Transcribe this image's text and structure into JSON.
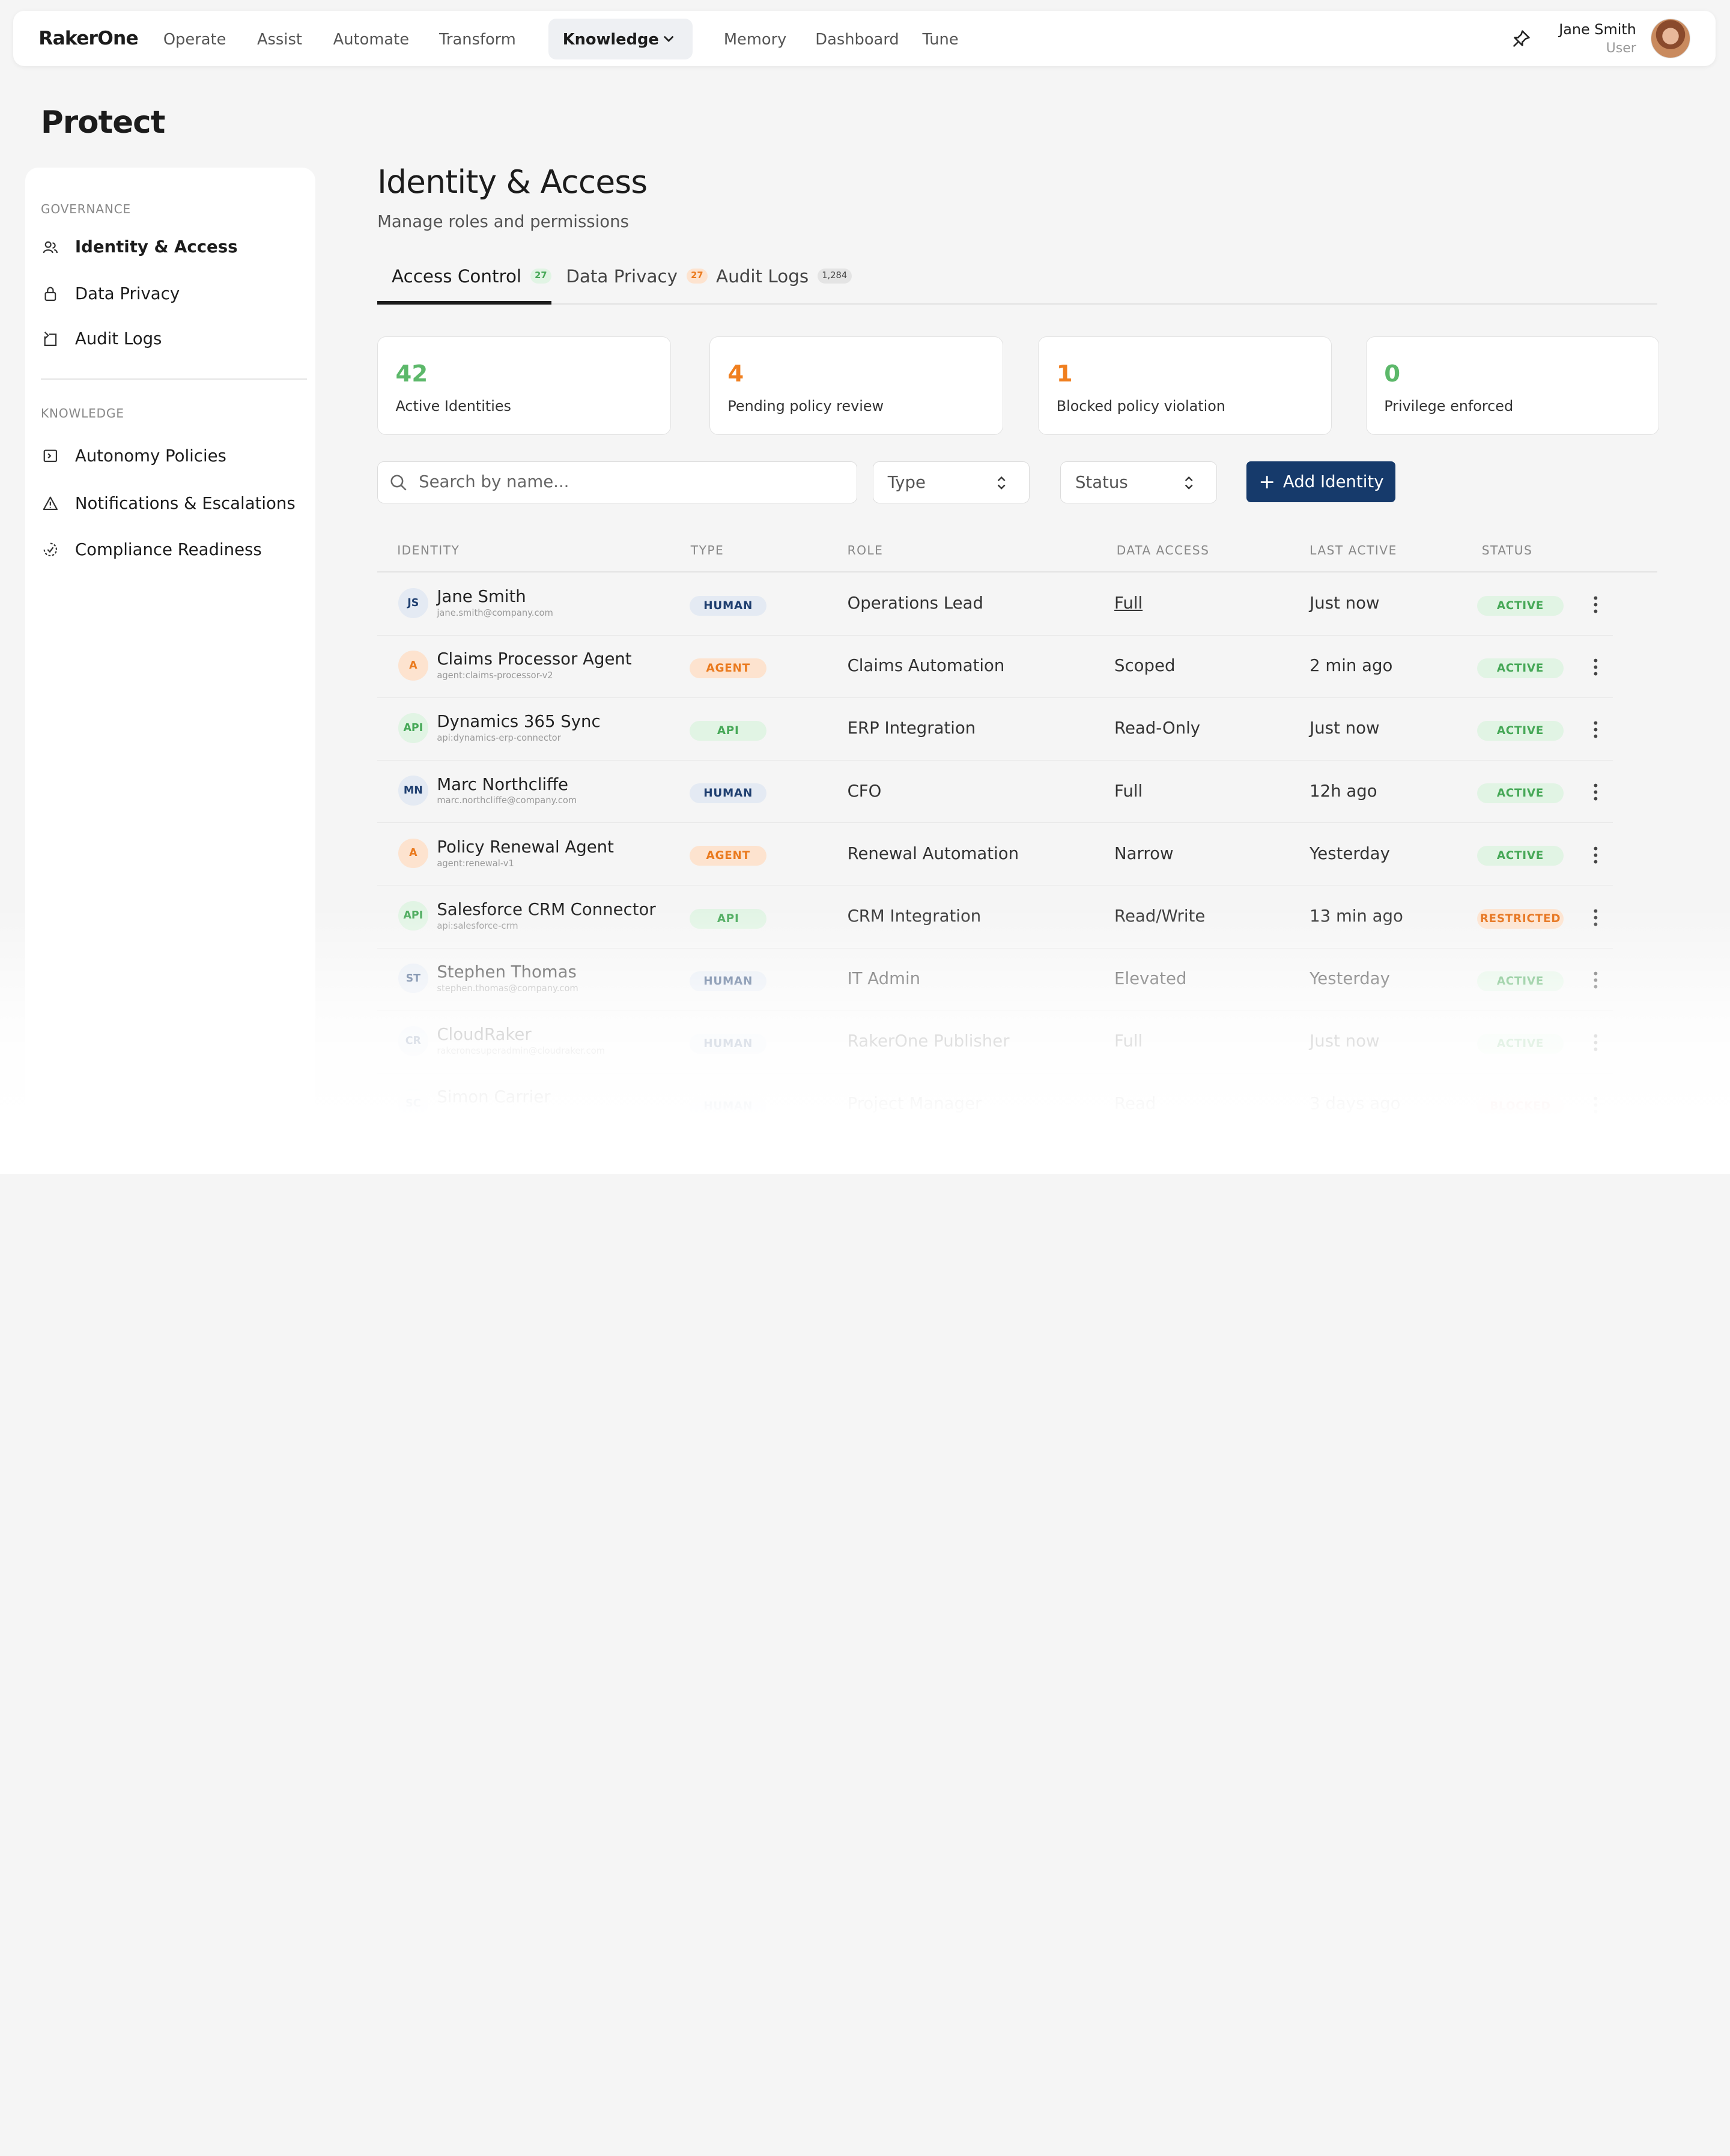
{
  "app": {
    "brand": "RakerOne"
  },
  "nav": {
    "items": [
      "Operate",
      "Assist",
      "Automate",
      "Transform"
    ],
    "active": "Knowledge",
    "items_right": [
      "Memory",
      "Dashboard",
      "Tune"
    ]
  },
  "user": {
    "name": "Jane Smith",
    "role": "User"
  },
  "page": {
    "title": "Protect"
  },
  "sidebar": {
    "governance_label": "GOVERNANCE",
    "governance": [
      {
        "label": "Identity & Access",
        "icon": "users-icon",
        "active": true
      },
      {
        "label": "Data Privacy",
        "icon": "lock-icon"
      },
      {
        "label": "Audit Logs",
        "icon": "log-icon"
      }
    ],
    "knowledge_label": "KNOWLEDGE",
    "knowledge": [
      {
        "label": "Autonomy Policies",
        "icon": "policy-icon"
      },
      {
        "label": "Notifications & Escalations",
        "icon": "alert-icon"
      },
      {
        "label": "Compliance Readiness",
        "icon": "compliance-icon"
      }
    ]
  },
  "main": {
    "title": "Identity & Access",
    "subtitle": "Manage roles and permissions",
    "tabs": [
      {
        "label": "Access Control",
        "badge": "27",
        "active": true
      },
      {
        "label": "Data Privacy",
        "badge": "27"
      },
      {
        "label": "Audit Logs",
        "badge": "1,284"
      }
    ]
  },
  "stats": [
    {
      "value": "42",
      "label": "Active Identities",
      "color": "#5cb86a"
    },
    {
      "value": "4",
      "label": "Pending policy review",
      "color": "#f07f1f"
    },
    {
      "value": "1",
      "label": "Blocked policy violation",
      "color": "#f07f1f"
    },
    {
      "value": "0",
      "label": "Privilege enforced",
      "color": "#5cb86a"
    }
  ],
  "toolbar": {
    "search_placeholder": "Search by name...",
    "type_label": "Type",
    "status_label": "Status",
    "add_label": "Add Identity"
  },
  "table": {
    "headers": [
      "IDENTITY",
      "TYPE",
      "ROLE",
      "DATA ACCESS",
      "LAST ACTIVE",
      "STATUS"
    ],
    "rows": [
      {
        "initials": "JS",
        "name": "Jane Smith",
        "sub": "jane.smith@company.com",
        "type": "HUMAN",
        "role": "Operations Lead",
        "access": "Full",
        "last": "Just now",
        "status": "ACTIVE"
      },
      {
        "initials": "A",
        "name": "Claims Processor Agent",
        "sub": "agent:claims-processor-v2",
        "type": "AGENT",
        "role": "Claims Automation",
        "access": "Scoped",
        "last": "2 min ago",
        "status": "ACTIVE"
      },
      {
        "initials": "API",
        "name": "Dynamics 365 Sync",
        "sub": "api:dynamics-erp-connector",
        "type": "API",
        "role": "ERP Integration",
        "access": "Read-Only",
        "last": "Just now",
        "status": "ACTIVE"
      },
      {
        "initials": "MN",
        "name": "Marc Northcliffe",
        "sub": "marc.northcliffe@company.com",
        "type": "HUMAN",
        "role": "CFO",
        "access": "Full",
        "last": "12h ago",
        "status": "ACTIVE"
      },
      {
        "initials": "A",
        "name": "Policy Renewal Agent",
        "sub": "agent:renewal-v1",
        "type": "AGENT",
        "role": "Renewal Automation",
        "access": "Narrow",
        "last": "Yesterday",
        "status": "ACTIVE"
      },
      {
        "initials": "API",
        "name": "Salesforce CRM Connector",
        "sub": "api:salesforce-crm",
        "type": "API",
        "role": "CRM Integration",
        "access": "Read/Write",
        "last": "13 min ago",
        "status": "RESTRICTED"
      },
      {
        "initials": "ST",
        "name": "Stephen Thomas",
        "sub": "stephen.thomas@company.com",
        "type": "HUMAN",
        "role": "IT Admin",
        "access": "Elevated",
        "last": "Yesterday",
        "status": "ACTIVE"
      },
      {
        "initials": "CR",
        "name": "CloudRaker",
        "sub": "rakeronesuperadmin@cloudraker.com",
        "type": "HUMAN",
        "role": "RakerOne Publisher",
        "access": "Full",
        "last": "Just now",
        "status": "ACTIVE"
      },
      {
        "initials": "SC",
        "name": "Simon Carrier",
        "sub": "",
        "type": "HUMAN",
        "role": "Project Manager",
        "access": "Read",
        "last": "3 days ago",
        "status": "BLOCKED"
      }
    ]
  },
  "colors": {
    "accent": "#163a6b",
    "human_bg": "#e4eaf3",
    "human_fg": "#1f3f70",
    "agent_bg": "#fde3cf",
    "agent_fg": "#ea7a1e",
    "api_bg": "#e1f4e4",
    "api_fg": "#46a857",
    "active_bg": "#e1f4e4",
    "active_fg": "#46a857",
    "restricted_bg": "#fde3cf",
    "restricted_fg": "#e56d12",
    "blocked_bg": "#f7e0e0",
    "blocked_fg": "#c44"
  }
}
